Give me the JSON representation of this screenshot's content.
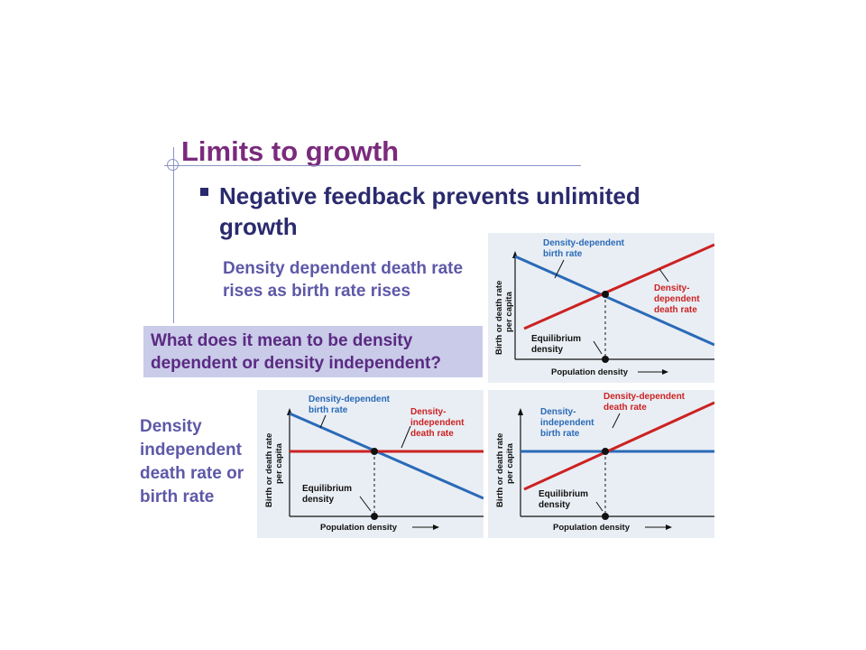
{
  "slide": {
    "title": "Limits to growth",
    "bullet": "Negative feedback prevents unlimited growth",
    "subtext": "Density dependent death rate rises as birth rate rises",
    "question": "What does it mean to be density dependent or density independent?",
    "left_text": "Density independent death rate or birth rate"
  },
  "colors": {
    "title": "#7a2a7c",
    "bullet": "#2a2a6e",
    "subtext": "#5e58a8",
    "question_bg": "#c9cbe8",
    "blue_line": "#2a6ab8",
    "red_line": "#cc2222",
    "graph_bg": "#e9eef4"
  },
  "graphs": [
    {
      "y_axis_line1": "Birth or death rate",
      "y_axis_line2": "per capita",
      "x_axis": "Population density",
      "blue_label_1": "Density-dependent",
      "blue_label_2": "birth rate",
      "red_label_1": "Density-",
      "red_label_2": "dependent",
      "red_label_3": "death rate",
      "eq_label_1": "Equilibrium",
      "eq_label_2": "density"
    },
    {
      "y_axis_line1": "Birth or death rate",
      "y_axis_line2": "per capita",
      "x_axis": "Population density",
      "blue_label_1": "Density-dependent",
      "blue_label_2": "birth rate",
      "red_label_1": "Density-",
      "red_label_2": "independent",
      "red_label_3": "death rate",
      "eq_label_1": "Equilibrium",
      "eq_label_2": "density"
    },
    {
      "y_axis_line1": "Birth or death rate",
      "y_axis_line2": "per capita",
      "x_axis": "Population density",
      "blue_label_1": "Density-",
      "blue_label_2": "independent",
      "blue_label_3": "birth rate",
      "red_label_1": "Density-dependent",
      "red_label_2": "death rate",
      "eq_label_1": "Equilibrium",
      "eq_label_2": "density"
    }
  ]
}
